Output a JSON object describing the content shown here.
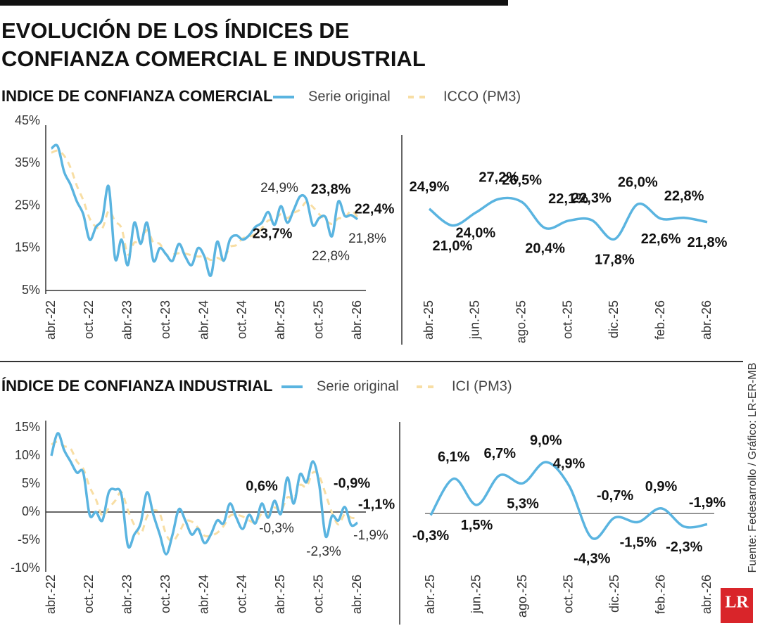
{
  "title": [
    "EVOLUCIÓN DE LOS ÍNDICES DE",
    "CONFIANZA COMERCIAL E INDUSTRIAL"
  ],
  "source": "Fuente: Fedesarrollo / Gráfico: LR-ER-MB",
  "logo": "LR",
  "chart_data": [
    {
      "type": "line",
      "title": "INDICE DE CONFIANZA COMERCIAL",
      "categories": [
        "abr.-22",
        null,
        null,
        null,
        null,
        null,
        "oct.-22",
        null,
        null,
        null,
        null,
        null,
        "abr.-23",
        null,
        null,
        null,
        null,
        null,
        "oct.-23",
        null,
        null,
        null,
        null,
        null,
        "abr.-24",
        null,
        null,
        null,
        null,
        null,
        "oct.-24",
        null,
        null,
        null,
        null,
        null,
        "abr.-25",
        null,
        null,
        null,
        null,
        null,
        "oct.-25",
        null,
        null,
        null,
        null,
        null,
        "abr.-26"
      ],
      "ylim": [
        5,
        45
      ],
      "yticks": [
        {
          "value": 5,
          "label": "5%"
        },
        {
          "value": 15,
          "label": "15%"
        },
        {
          "value": 25,
          "label": "25%"
        },
        {
          "value": 35,
          "label": "35%"
        },
        {
          "value": 45,
          "label": "45%"
        }
      ],
      "series": [
        {
          "name": "Serie original",
          "color": "#5ab4e0",
          "line_style": "solid",
          "values": [
            38.5,
            39,
            33,
            30,
            26,
            23,
            17,
            20,
            22,
            29.5,
            12.5,
            17,
            11,
            21,
            16,
            21,
            12,
            15,
            13.5,
            12,
            16,
            13,
            11,
            15,
            13,
            8.5,
            16.5,
            12,
            17,
            18,
            17,
            18,
            20,
            21,
            23.5,
            20.5,
            24.9,
            21.0,
            24.0,
            27.2,
            26.5,
            20.4,
            22.1,
            22.3,
            17.8,
            26.0,
            22.6,
            22.8,
            21.8
          ]
        },
        {
          "name": "ICCO (PM3)",
          "color": "#f8dea4",
          "line_style": "dashed",
          "values": [
            37.5,
            38,
            36.8,
            34,
            29.7,
            26.3,
            22,
            20,
            19.7,
            23.8,
            21.3,
            19.7,
            13.5,
            16.3,
            16,
            19.3,
            16.3,
            16,
            13.5,
            13.5,
            13.8,
            13.7,
            13.3,
            13,
            13,
            12.2,
            12.7,
            12.3,
            15.2,
            15.7,
            17.3,
            17.7,
            18.3,
            19.7,
            21.5,
            21.7,
            23,
            22.1,
            23.3,
            24.1,
            25.9,
            24.7,
            23,
            21.6,
            20.7,
            22,
            22.1,
            23.8,
            22.4
          ]
        }
      ],
      "annotations": [
        "24,9%",
        "23,8%",
        "22,4%",
        "23,7%",
        "21,8%",
        "22,8%"
      ]
    },
    {
      "type": "line",
      "categories": [
        "abr.-25",
        null,
        "jun.-25",
        null,
        "ago.-25",
        null,
        "oct.-25",
        null,
        "dic.-25",
        null,
        "feb.-26",
        null,
        "abr.-26"
      ],
      "series": [
        {
          "color": "#5ab4e0",
          "line_style": "solid",
          "values": [
            24.9,
            21.0,
            24.0,
            27.2,
            26.5,
            20.4,
            22.1,
            22.3,
            17.8,
            26.0,
            22.6,
            22.8,
            21.8
          ],
          "value_labels": [
            "24,9%",
            "21,0%",
            "24,0%",
            "27,2%",
            "26,5%",
            "20,4%",
            "22,1%",
            "22,3%",
            "17,8%",
            "26,0%",
            "22,6%",
            "22,8%",
            "21,8%"
          ]
        }
      ]
    },
    {
      "type": "line",
      "title": "ÍNDICE DE CONFIANZA INDUSTRIAL",
      "categories": [
        "abr.-22",
        null,
        null,
        null,
        null,
        null,
        "oct.-22",
        null,
        null,
        null,
        null,
        null,
        "abr.-23",
        null,
        null,
        null,
        null,
        null,
        "oct.-23",
        null,
        null,
        null,
        null,
        null,
        "abr.-24",
        null,
        null,
        null,
        null,
        null,
        "oct.-24",
        null,
        null,
        null,
        null,
        null,
        "abr.-25",
        null,
        null,
        null,
        null,
        null,
        "oct.-25",
        null,
        null,
        null,
        null,
        null,
        "abr.-26"
      ],
      "ylim": [
        -10,
        15
      ],
      "yticks": [
        {
          "value": -10,
          "label": "-10%"
        },
        {
          "value": -5,
          "label": "-5%"
        },
        {
          "value": 0,
          "label": "0%"
        },
        {
          "value": 5,
          "label": "5%"
        },
        {
          "value": 10,
          "label": "10%"
        },
        {
          "value": 15,
          "label": "15%"
        }
      ],
      "series": [
        {
          "name": "Serie original",
          "color": "#5ab4e0",
          "line_style": "solid",
          "values": [
            10,
            14,
            11,
            9,
            7,
            7,
            -0.5,
            0,
            -1.5,
            3.5,
            4,
            3,
            -6,
            -4,
            -2,
            3.5,
            -0.5,
            -4,
            -7.5,
            -4,
            0.5,
            -1.5,
            -4,
            -3,
            -5.5,
            -4,
            -1.5,
            -2,
            1.5,
            -1,
            -3,
            -0.5,
            -2,
            1.5,
            -1,
            2,
            -0.3,
            6.1,
            1.5,
            6.7,
            5.3,
            9.0,
            4.9,
            -4.3,
            -0.7,
            -1.5,
            0.9,
            -2.3,
            -1.9
          ]
        },
        {
          "name": "ICI (PM3)",
          "color": "#f8dea4",
          "line_style": "dashed",
          "values": [
            12,
            12.5,
            11.7,
            11.3,
            9,
            7.7,
            4.5,
            2.2,
            -0.7,
            0.7,
            2,
            3.5,
            0.3,
            -2.3,
            -4,
            -0.8,
            0.3,
            -0.3,
            -4,
            -5.2,
            -3.7,
            -1.7,
            -1.7,
            -2.8,
            -4.2,
            -4.2,
            -3.7,
            -2.5,
            -0.7,
            -0.5,
            -0.8,
            -1.5,
            -1.8,
            -0.3,
            -0.5,
            0.8,
            0.2,
            2.6,
            2.4,
            4.8,
            4.5,
            7,
            6.4,
            3.2,
            -0.1,
            -2.2,
            -0.4,
            -1,
            -1.1
          ]
        }
      ],
      "annotations": [
        "0,6%",
        "-0,9%",
        "-1,1%",
        "-0,3%",
        "-1,9%",
        "-2,3%"
      ]
    },
    {
      "type": "line",
      "categories": [
        "abr.-25",
        null,
        "jun.-25",
        null,
        "ago.-25",
        null,
        "oct.-25",
        null,
        "dic.-25",
        null,
        "feb.-26",
        null,
        "abr.-26"
      ],
      "series": [
        {
          "color": "#5ab4e0",
          "line_style": "solid",
          "values": [
            -0.3,
            6.1,
            1.5,
            6.7,
            5.3,
            9.0,
            4.9,
            -4.3,
            -0.7,
            -1.5,
            0.9,
            -2.3,
            -1.9
          ],
          "value_labels": [
            "-0,3%",
            "6,1%",
            "1,5%",
            "6,7%",
            "5,3%",
            "9,0%",
            "4,9%",
            "-4,3%",
            "-0,7%",
            "-1,5%",
            "0,9%",
            "-2,3%",
            "-1,9%"
          ]
        }
      ]
    }
  ]
}
